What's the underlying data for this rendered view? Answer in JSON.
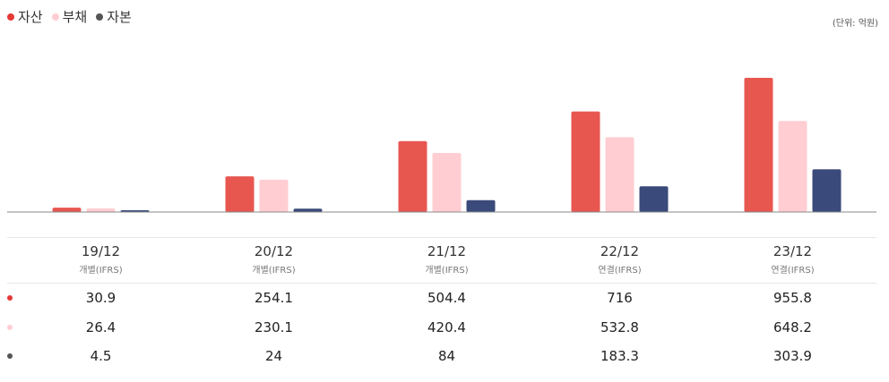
{
  "unit_label": "(단위: 억원)",
  "colors": {
    "assets": "#e85650",
    "liabilities": "#ffcdd2",
    "equity": "#3a4a7a",
    "axis": "#888888"
  },
  "chart_data": {
    "type": "bar",
    "title": "",
    "xlabel": "",
    "ylabel": "",
    "ylim": [
      0,
      1000
    ],
    "categories": [
      "19/12",
      "20/12",
      "21/12",
      "22/12",
      "23/12"
    ],
    "subcategories": [
      "개별(IFRS)",
      "개별(IFRS)",
      "개별(IFRS)",
      "연결(IFRS)",
      "연결(IFRS)"
    ],
    "series": [
      {
        "name": "자산",
        "color": "#e85650",
        "values": [
          30.9,
          254.1,
          504.4,
          716,
          955.8
        ]
      },
      {
        "name": "부채",
        "color": "#ffcdd2",
        "values": [
          26.4,
          230.1,
          420.4,
          532.8,
          648.2
        ]
      },
      {
        "name": "자본",
        "color": "#3a4a7a",
        "values": [
          4.5,
          24,
          84,
          183.3,
          303.9
        ]
      }
    ],
    "legend_position": "top-left",
    "grid": false
  },
  "table": {
    "rows": [
      {
        "series": "자산",
        "values": [
          "30.9",
          "254.1",
          "504.4",
          "716",
          "955.8"
        ]
      },
      {
        "series": "부채",
        "values": [
          "26.4",
          "230.1",
          "420.4",
          "532.8",
          "648.2"
        ]
      },
      {
        "series": "자본",
        "values": [
          "4.5",
          "24",
          "84",
          "183.3",
          "303.9"
        ]
      }
    ]
  }
}
